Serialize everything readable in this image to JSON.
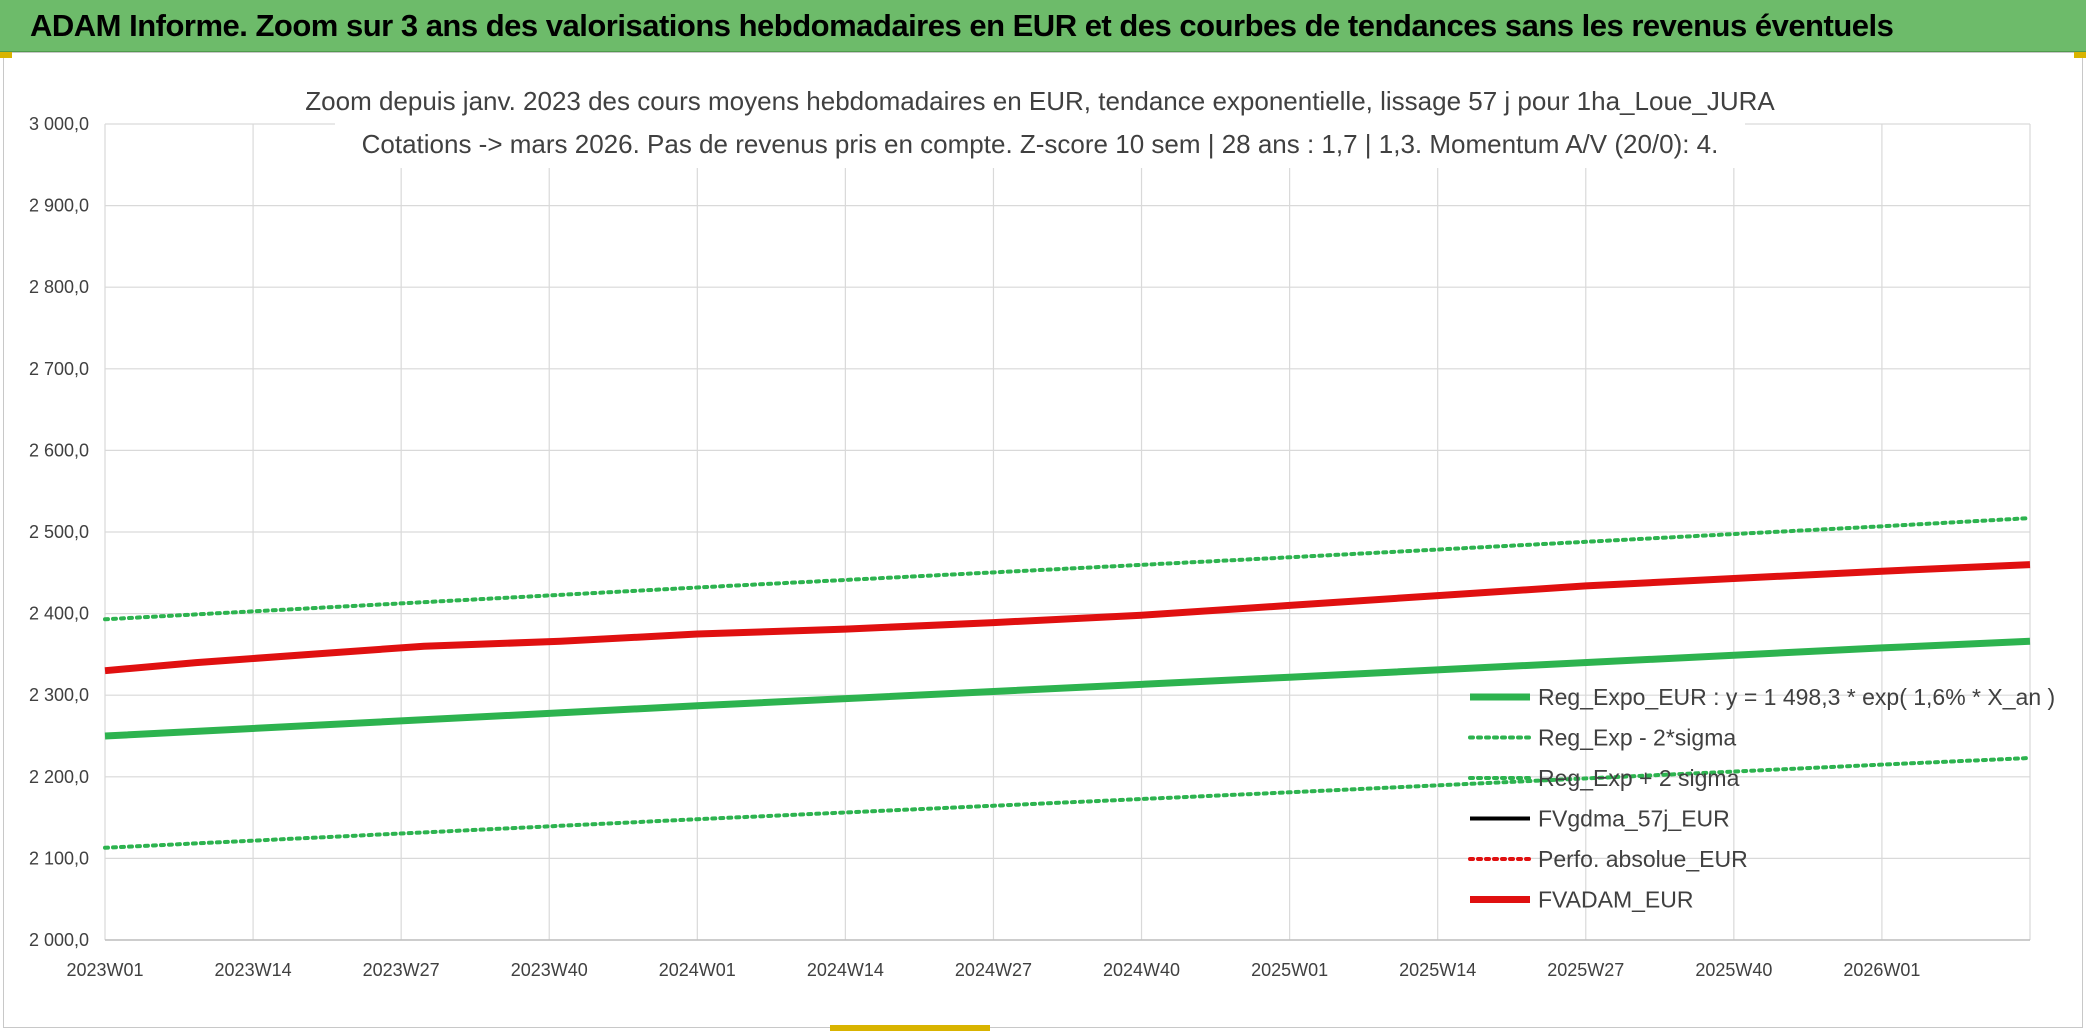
{
  "header": {
    "title": "ADAM Informe. Zoom sur 3 ans des valorisations hebdomadaires en EUR et des courbes de tendances sans les revenus éventuels"
  },
  "chart_data": {
    "type": "line",
    "title_line1": "Zoom depuis janv. 2023 des cours moyens hebdomadaires en EUR, tendance exponentielle, lissage 57 j pour 1ha_Loue_JURA",
    "title_line2": "Cotations -> mars 2026. Pas de revenus pris en compte. Z-score 10 sem | 28 ans : 1,7 | 1,3. Momentum A/V (20/0): 4.",
    "ylim": [
      2000,
      3000
    ],
    "y_ticks": [
      "2 000,0",
      "2 100,0",
      "2 200,0",
      "2 300,0",
      "2 400,0",
      "2 500,0",
      "2 600,0",
      "2 700,0",
      "2 800,0",
      "2 900,0",
      "3 000,0"
    ],
    "x_ticks": [
      "2023W01",
      "2023W14",
      "2023W27",
      "2023W40",
      "2024W01",
      "2024W14",
      "2024W27",
      "2024W40",
      "2025W01",
      "2025W14",
      "2025W27",
      "2025W40",
      "2026W01"
    ],
    "x_range_weeks": [
      0,
      169
    ],
    "grid": true,
    "legend_position": "right",
    "series": [
      {
        "name": "Reg_Expo_EUR : y = 1 498,3 * exp( 1,6% *  X_an )",
        "color": "#2db34f",
        "style": "solid-thick",
        "points": [
          [
            0,
            2250
          ],
          [
            52,
            2287
          ],
          [
            104,
            2322
          ],
          [
            156,
            2358
          ],
          [
            169,
            2366
          ]
        ]
      },
      {
        "name": "Reg_Exp - 2*sigma",
        "color": "#2db34f",
        "style": "dotted",
        "points": [
          [
            0,
            2113
          ],
          [
            52,
            2148
          ],
          [
            104,
            2181
          ],
          [
            156,
            2215
          ],
          [
            169,
            2223
          ]
        ]
      },
      {
        "name": "Reg_Exp + 2 sigma",
        "color": "#2db34f",
        "style": "dotted",
        "points": [
          [
            0,
            2393
          ],
          [
            52,
            2432
          ],
          [
            104,
            2469
          ],
          [
            156,
            2507
          ],
          [
            169,
            2517
          ]
        ]
      },
      {
        "name": "FVgdma_57j_EUR",
        "color": "#000000",
        "style": "solid",
        "points": []
      },
      {
        "name": "Perfo. absolue_EUR",
        "color": "#e01010",
        "style": "dotted",
        "points": []
      },
      {
        "name": "FVADAM_EUR",
        "color": "#e01010",
        "style": "solid-thick",
        "points": [
          [
            0,
            2330
          ],
          [
            8,
            2340
          ],
          [
            18,
            2350
          ],
          [
            28,
            2360
          ],
          [
            40,
            2366
          ],
          [
            52,
            2375
          ],
          [
            65,
            2381
          ],
          [
            78,
            2389
          ],
          [
            91,
            2398
          ],
          [
            104,
            2410
          ],
          [
            117,
            2422
          ],
          [
            130,
            2434
          ],
          [
            143,
            2443
          ],
          [
            156,
            2452
          ],
          [
            169,
            2460
          ]
        ]
      }
    ]
  }
}
